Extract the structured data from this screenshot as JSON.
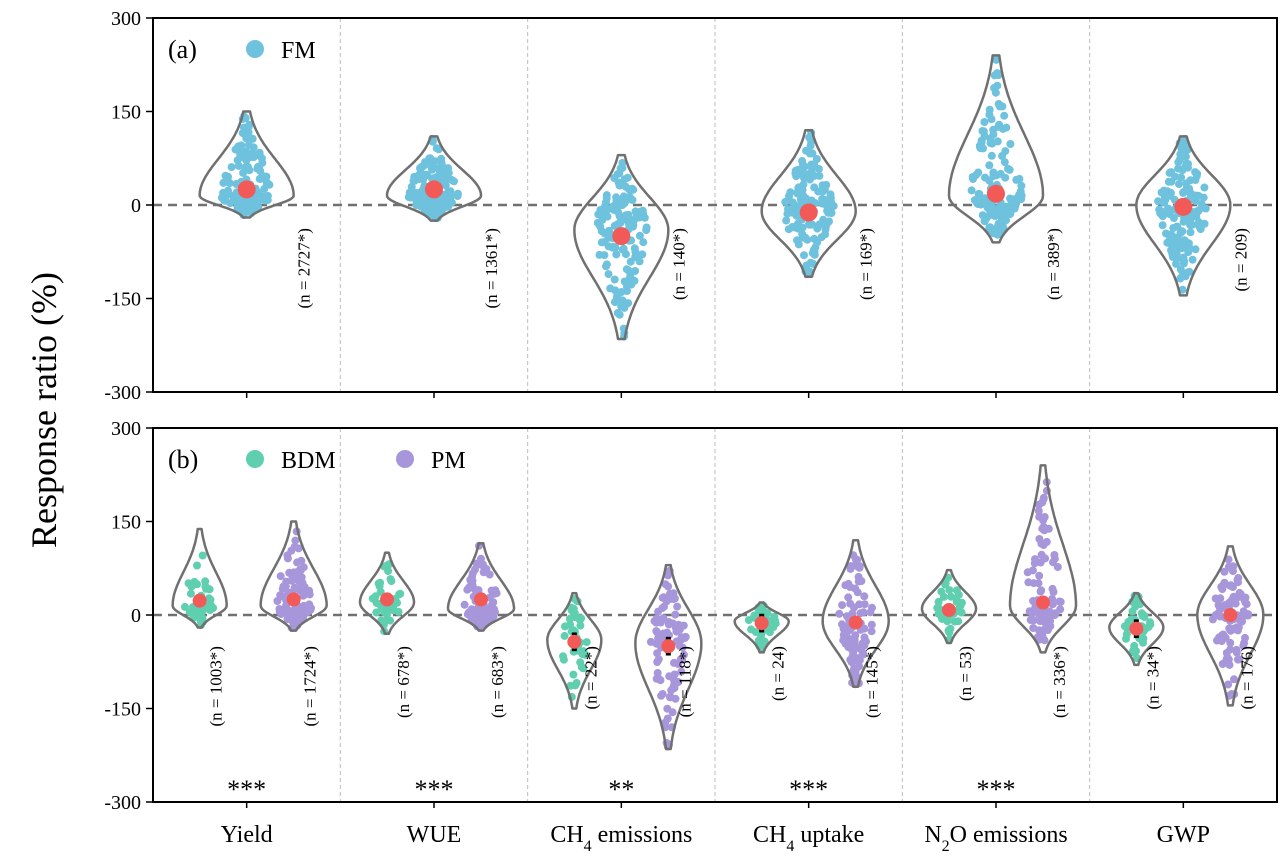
{
  "chart_data": {
    "type": "violin",
    "ylabel": "Response ratio (%)",
    "ylim": [
      -300,
      300
    ],
    "yticks": [
      300,
      150,
      0,
      -150,
      -300
    ],
    "categories": [
      {
        "main": "Yield",
        "sub": "",
        "tail": ""
      },
      {
        "main": "WUE",
        "sub": "",
        "tail": ""
      },
      {
        "main": "CH",
        "sub": "4",
        "tail": " emissions"
      },
      {
        "main": "CH",
        "sub": "4",
        "tail": " uptake"
      },
      {
        "main": "N",
        "sub": "2",
        "tail": "O emissions"
      },
      {
        "main": "GWP",
        "sub": "",
        "tail": ""
      }
    ],
    "colors": {
      "FM": "#6EC2DE",
      "BDM": "#5FCFB0",
      "PM": "#A896DB",
      "mean": "#F25A57",
      "violin": "#707070",
      "zero": "#707070",
      "grid": "#BEBEBE"
    },
    "panels": [
      {
        "label": "(a)",
        "legend": [
          "FM"
        ],
        "groups": [
          {
            "category": 0,
            "series": "FM",
            "n_label": "(n = 2727*)",
            "mean": 25,
            "min": -20,
            "max": 150,
            "peak": 15
          },
          {
            "category": 1,
            "series": "FM",
            "n_label": "(n = 1361*)",
            "mean": 25,
            "min": -25,
            "max": 110,
            "peak": 15
          },
          {
            "category": 2,
            "series": "FM",
            "n_label": "(n = 140*)",
            "mean": -50,
            "min": -215,
            "max": 80,
            "peak": -40
          },
          {
            "category": 3,
            "series": "FM",
            "n_label": "(n = 169*)",
            "mean": -12,
            "min": -115,
            "max": 120,
            "peak": -10
          },
          {
            "category": 4,
            "series": "FM",
            "n_label": "(n = 389*)",
            "mean": 18,
            "min": -60,
            "max": 240,
            "peak": 15
          },
          {
            "category": 5,
            "series": "FM",
            "n_label": "(n = 209)",
            "mean": -3,
            "min": -145,
            "max": 110,
            "peak": 0
          }
        ],
        "significance": [
          "",
          "",
          "",
          "",
          "",
          ""
        ]
      },
      {
        "label": "(b)",
        "legend": [
          "BDM",
          "PM"
        ],
        "groups": [
          {
            "category": 0,
            "series": "BDM",
            "n_label": "(n = 1003*)",
            "mean": 23,
            "min": -20,
            "max": 138,
            "peak": 15
          },
          {
            "category": 0,
            "series": "PM",
            "n_label": "(n = 1724*)",
            "mean": 25,
            "min": -25,
            "max": 150,
            "peak": 15
          },
          {
            "category": 1,
            "series": "BDM",
            "n_label": "(n = 678*)",
            "mean": 25,
            "min": -30,
            "max": 100,
            "peak": 20
          },
          {
            "category": 1,
            "series": "PM",
            "n_label": "(n = 683*)",
            "mean": 25,
            "min": -25,
            "max": 115,
            "peak": 10
          },
          {
            "category": 2,
            "series": "BDM",
            "n_label": "(n = 22*)",
            "mean": -43,
            "min": -150,
            "max": 35,
            "peak": -40
          },
          {
            "category": 2,
            "series": "PM",
            "n_label": "(n = 118*)",
            "mean": -50,
            "min": -215,
            "max": 80,
            "peak": -45
          },
          {
            "category": 3,
            "series": "BDM",
            "n_label": "(n = 24)",
            "mean": -13,
            "min": -60,
            "max": 20,
            "peak": -10
          },
          {
            "category": 3,
            "series": "PM",
            "n_label": "(n = 145*)",
            "mean": -12,
            "min": -115,
            "max": 120,
            "peak": -10
          },
          {
            "category": 4,
            "series": "BDM",
            "n_label": "(n = 53)",
            "mean": 8,
            "min": -45,
            "max": 72,
            "peak": 10
          },
          {
            "category": 4,
            "series": "PM",
            "n_label": "(n = 336*)",
            "mean": 20,
            "min": -60,
            "max": 240,
            "peak": 15
          },
          {
            "category": 5,
            "series": "BDM",
            "n_label": "(n = 34*)",
            "mean": -22,
            "min": -80,
            "max": 35,
            "peak": -20
          },
          {
            "category": 5,
            "series": "PM",
            "n_label": "(n = 176)",
            "mean": 0,
            "min": -145,
            "max": 110,
            "peak": 0
          }
        ],
        "significance": [
          "***",
          "***",
          "**",
          "***",
          "***",
          ""
        ]
      }
    ]
  }
}
